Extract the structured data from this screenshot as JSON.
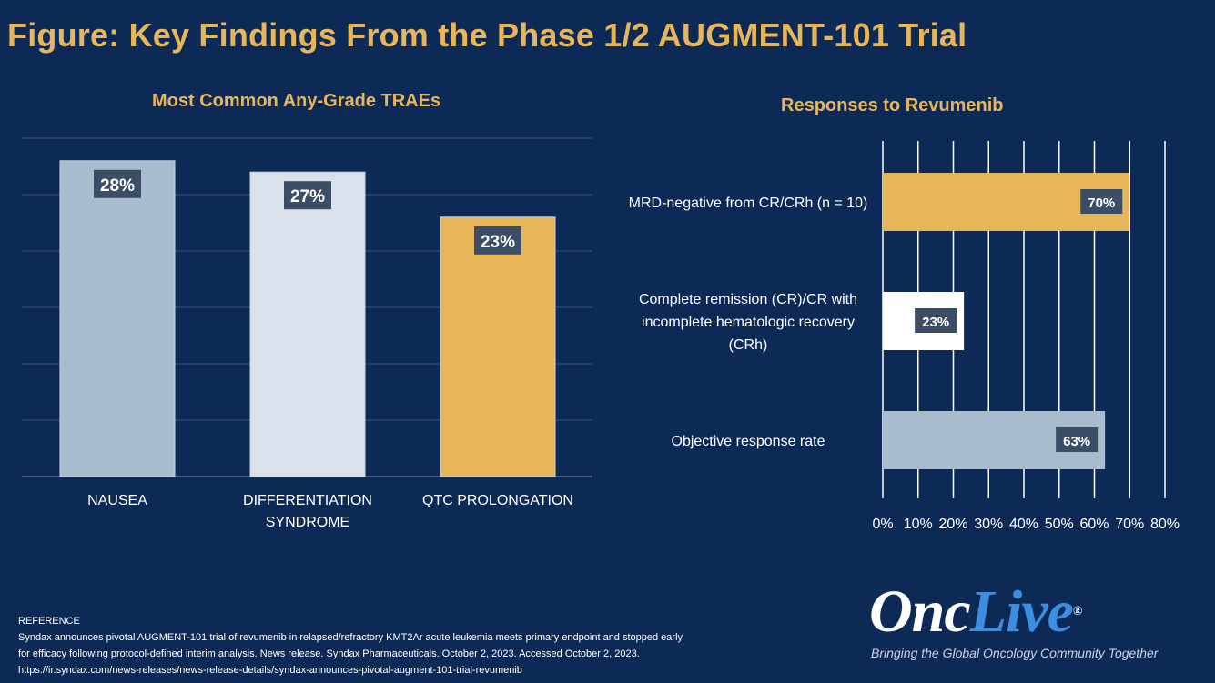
{
  "title": "Figure: Key Findings From the Phase 1/2 AUGMENT-101 Trial",
  "colors": {
    "background": "#0d2a57",
    "accent": "#e8b65a",
    "bar_nausea": "#a9bccd",
    "bar_differentiation": "#dbe1ea",
    "bar_qtc": "#e8b65a",
    "bar_mrd": "#e8b65a",
    "bar_cr": "#ffffff",
    "bar_orr": "#a9bccd",
    "label_box": "#3c4e66"
  },
  "chart_data": [
    {
      "type": "bar",
      "title": "Most Common Any-Grade TRAEs",
      "categories": [
        [
          "NAUSEA"
        ],
        [
          "DIFFERENTIATION",
          "SYNDROME"
        ],
        [
          "QTC PROLONGATION"
        ]
      ],
      "values": [
        28,
        27,
        23
      ],
      "data_labels": [
        "28%",
        "27%",
        "23%"
      ],
      "ylim": [
        0,
        30
      ],
      "grid": true,
      "xlabel": "",
      "ylabel": ""
    },
    {
      "type": "bar",
      "orientation": "horizontal",
      "title": "Responses to Revumenib",
      "categories": [
        [
          "MRD-negative from CR/CRh (n = 10)"
        ],
        [
          "Complete remission (CR)/CR with",
          "incomplete hematologic recovery",
          "(CRh)"
        ],
        [
          "Objective response rate"
        ]
      ],
      "values": [
        70,
        23,
        63
      ],
      "data_labels": [
        "70%",
        "23%",
        "63%"
      ],
      "xlim": [
        0,
        80
      ],
      "xticks": [
        "0%",
        "10%",
        "20%",
        "30%",
        "40%",
        "50%",
        "60%",
        "70%",
        "80%"
      ],
      "grid": true,
      "xlabel": "",
      "ylabel": ""
    }
  ],
  "reference": {
    "heading": "REFERENCE",
    "line1": "Syndax announces pivotal AUGMENT-101 trial of revumenib in relapsed/refractory KMT2Ar acute leukemia meets primary endpoint and stopped early",
    "line2": "for efficacy following protocol-defined interim analysis. News release. Syndax Pharmaceuticals. October 2, 2023. Accessed October 2, 2023.",
    "line3": "https://ir.syndax.com/news-releases/news-release-details/syndax-announces-pivotal-augment-101-trial-revumenib"
  },
  "logo": {
    "part1": "Onc",
    "part2": "Live",
    "mark": "®",
    "tagline": "Bringing the Global Oncology Community Together"
  }
}
